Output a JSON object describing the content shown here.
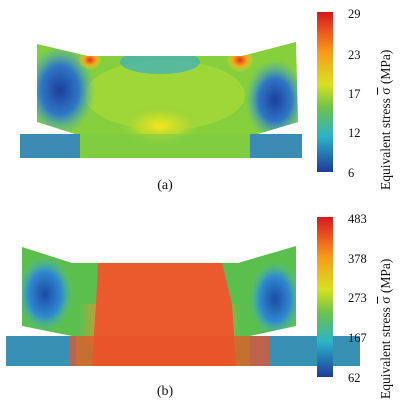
{
  "panels": [
    {
      "caption": "(a)",
      "colorbar": {
        "label": "Equivalent stress",
        "symbol": "σ",
        "unit": "(MPa)",
        "ticks": [
          "29",
          "23",
          "17",
          "12",
          "6"
        ]
      },
      "colors": {
        "max": "#d7301f",
        "mid": "#7ccf3a",
        "min": "#1f3f9e"
      }
    },
    {
      "caption": "(b)",
      "colorbar": {
        "label": "Equivalent stress",
        "symbol": "σ",
        "unit": "(MPa)",
        "ticks": [
          "483",
          "378",
          "273",
          "167",
          "62"
        ]
      },
      "colors": {
        "max": "#e8482a",
        "mid": "#5bbf4e",
        "min": "#1f3f9e"
      }
    }
  ]
}
